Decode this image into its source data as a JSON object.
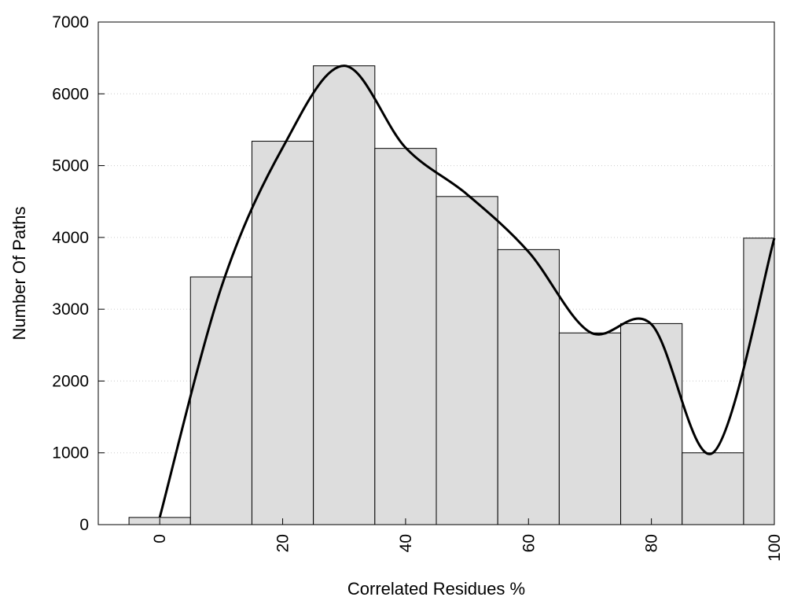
{
  "chart_data": {
    "type": "bar",
    "title": "",
    "xlabel": "Correlated Residues %",
    "ylabel": "Number Of Paths",
    "x": [
      0,
      10,
      20,
      30,
      40,
      50,
      60,
      70,
      80,
      90,
      100
    ],
    "values": [
      100,
      3450,
      5340,
      6390,
      5240,
      4570,
      3830,
      2670,
      2800,
      1000,
      3990
    ],
    "bin_width": 10,
    "xlim": [
      -10,
      100
    ],
    "ylim": [
      0,
      7000
    ],
    "x_ticks": [
      0,
      20,
      40,
      60,
      80,
      100
    ],
    "y_ticks": [
      0,
      1000,
      2000,
      3000,
      4000,
      5000,
      6000,
      7000
    ],
    "grid": "horizontal dotted",
    "legend": "none",
    "curve": {
      "x": [
        0,
        10,
        20,
        30,
        40,
        50,
        60,
        70,
        80,
        90,
        100
      ],
      "y": [
        100,
        3300,
        5250,
        6390,
        5250,
        4600,
        3800,
        2680,
        2790,
        1000,
        3990
      ]
    },
    "colors": {
      "bar_fill": "#dddddd",
      "bar_stroke": "#000000",
      "curve": "#000000",
      "grid": "#cccccc"
    }
  }
}
